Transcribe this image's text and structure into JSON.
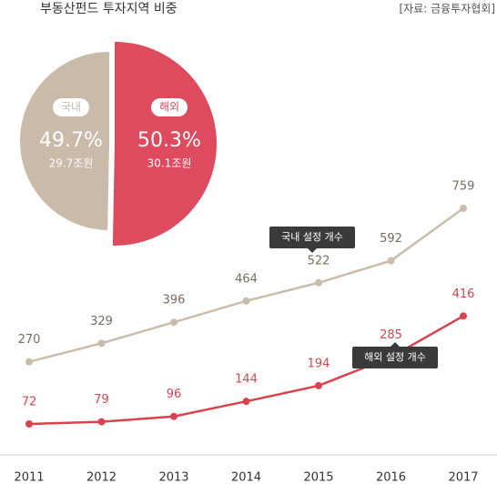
{
  "chart_data": [
    {
      "type": "pie",
      "title": "부동산펀드 투자지역 비중",
      "source": "[자료: 금융투자협회]",
      "categories": [
        "국내",
        "해외"
      ],
      "values": [
        49.7,
        50.3
      ],
      "value_labels": [
        "49.7%",
        "50.3%"
      ],
      "amounts": [
        "29.7조원",
        "30.1조원"
      ],
      "colors": [
        "#c9baa9",
        "#de4a5e"
      ]
    },
    {
      "type": "line",
      "x": [
        "2011",
        "2012",
        "2013",
        "2014",
        "2015",
        "2016",
        "2017"
      ],
      "series": [
        {
          "name": "국내 설정 개수",
          "color": "#cbbcab",
          "values": [
            270,
            329,
            396,
            464,
            522,
            592,
            759
          ]
        },
        {
          "name": "해외 설정 개수",
          "color": "#d8434f",
          "values": [
            72,
            79,
            96,
            144,
            194,
            285,
            416
          ]
        }
      ]
    }
  ]
}
